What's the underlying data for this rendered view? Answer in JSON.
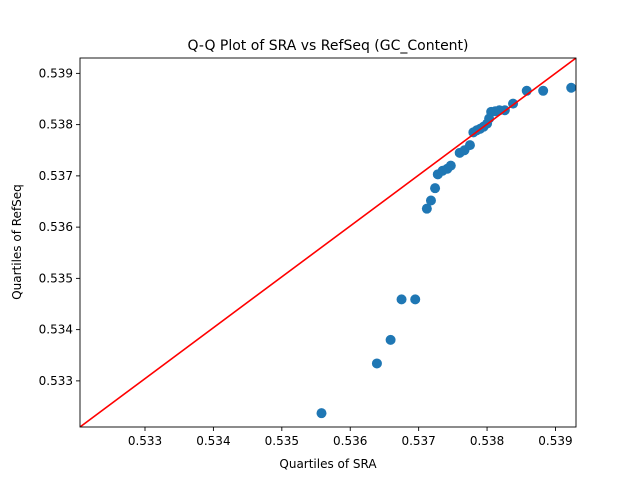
{
  "chart_data": {
    "type": "scatter",
    "title": "Q-Q Plot of SRA vs RefSeq (GC_Content)",
    "xlabel": "Quartiles of SRA",
    "ylabel": "Quartiles of RefSeq",
    "xlim": [
      0.53205,
      0.5393
    ],
    "ylim": [
      0.5321,
      0.5393
    ],
    "xticks": [
      0.533,
      0.534,
      0.535,
      0.536,
      0.537,
      0.538,
      0.539
    ],
    "yticks": [
      0.533,
      0.534,
      0.535,
      0.536,
      0.537,
      0.538,
      0.539
    ],
    "grid": false,
    "marker_color": "#1f77b4",
    "reference_line": {
      "color": "#ff0000",
      "from": [
        0.53205,
        0.5321
      ],
      "to": [
        0.5393,
        0.5393
      ]
    },
    "points": [
      [
        0.53558,
        0.53237
      ],
      [
        0.53639,
        0.53334
      ],
      [
        0.53659,
        0.5338
      ],
      [
        0.53675,
        0.53459
      ],
      [
        0.53695,
        0.53459
      ],
      [
        0.53712,
        0.53636
      ],
      [
        0.53718,
        0.53652
      ],
      [
        0.53724,
        0.53676
      ],
      [
        0.53728,
        0.53703
      ],
      [
        0.53735,
        0.5371
      ],
      [
        0.53742,
        0.53714
      ],
      [
        0.53747,
        0.5372
      ],
      [
        0.5376,
        0.53745
      ],
      [
        0.53767,
        0.5375
      ],
      [
        0.53775,
        0.5376
      ],
      [
        0.5378,
        0.53785
      ],
      [
        0.53785,
        0.53789
      ],
      [
        0.5379,
        0.53792
      ],
      [
        0.53795,
        0.53796
      ],
      [
        0.538,
        0.53802
      ],
      [
        0.53803,
        0.53812
      ],
      [
        0.53806,
        0.53825
      ],
      [
        0.53812,
        0.53826
      ],
      [
        0.53818,
        0.53828
      ],
      [
        0.53826,
        0.53828
      ],
      [
        0.53838,
        0.53841
      ],
      [
        0.53858,
        0.53866
      ],
      [
        0.53882,
        0.53866
      ],
      [
        0.53923,
        0.53872
      ]
    ]
  }
}
